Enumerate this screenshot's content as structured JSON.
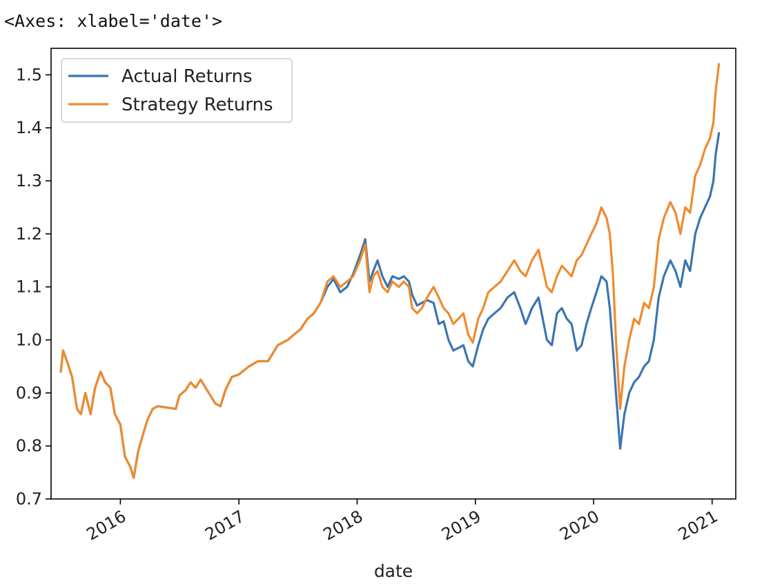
{
  "output_text": "<Axes: xlabel='date'>",
  "colors": {
    "actual": "#3a75b0",
    "strategy": "#ef8a2e",
    "axis": "#000000"
  },
  "chart_data": {
    "type": "line",
    "title": "",
    "xlabel": "date",
    "ylabel": "",
    "x_type": "date",
    "xlim": [
      "2015-06-01",
      "2021-03-15"
    ],
    "ylim": [
      0.7,
      1.55
    ],
    "y_ticks": [
      0.7,
      0.8,
      0.9,
      1.0,
      1.1,
      1.2,
      1.3,
      1.4,
      1.5
    ],
    "y_tick_labels": [
      "0.7",
      "0.8",
      "0.9",
      "1.0",
      "1.1",
      "1.2",
      "1.3",
      "1.4",
      "1.5"
    ],
    "x_ticks": [
      "2016-01-01",
      "2017-01-01",
      "2018-01-01",
      "2019-01-01",
      "2020-01-01",
      "2021-01-01"
    ],
    "x_tick_labels": [
      "2016",
      "2017",
      "2018",
      "2019",
      "2020",
      "2021"
    ],
    "x_tick_rotation": 30,
    "grid": false,
    "legend": {
      "position": "upper left",
      "entries": [
        "Actual Returns",
        "Strategy Returns"
      ]
    },
    "series": [
      {
        "name": "Actual Returns",
        "color": "#3a75b0",
        "points": [
          [
            "2015-07-01",
            0.94
          ],
          [
            "2015-07-08",
            0.98
          ],
          [
            "2015-07-20",
            0.96
          ],
          [
            "2015-08-05",
            0.93
          ],
          [
            "2015-08-20",
            0.87
          ],
          [
            "2015-09-01",
            0.86
          ],
          [
            "2015-09-15",
            0.9
          ],
          [
            "2015-10-01",
            0.86
          ],
          [
            "2015-10-15",
            0.91
          ],
          [
            "2015-11-01",
            0.94
          ],
          [
            "2015-11-15",
            0.92
          ],
          [
            "2015-12-01",
            0.91
          ],
          [
            "2015-12-15",
            0.86
          ],
          [
            "2016-01-01",
            0.84
          ],
          [
            "2016-01-15",
            0.78
          ],
          [
            "2016-02-01",
            0.76
          ],
          [
            "2016-02-11",
            0.74
          ],
          [
            "2016-02-25",
            0.79
          ],
          [
            "2016-03-10",
            0.82
          ],
          [
            "2016-03-25",
            0.85
          ],
          [
            "2016-04-10",
            0.87
          ],
          [
            "2016-04-25",
            0.875
          ],
          [
            "2016-06-20",
            0.87
          ],
          [
            "2016-07-01",
            0.895
          ],
          [
            "2016-07-20",
            0.905
          ],
          [
            "2016-08-05",
            0.92
          ],
          [
            "2016-08-20",
            0.91
          ],
          [
            "2016-09-05",
            0.925
          ],
          [
            "2016-09-20",
            0.91
          ],
          [
            "2016-10-05",
            0.895
          ],
          [
            "2016-10-20",
            0.88
          ],
          [
            "2016-11-05",
            0.875
          ],
          [
            "2016-11-20",
            0.905
          ],
          [
            "2016-12-10",
            0.93
          ],
          [
            "2017-01-01",
            0.935
          ],
          [
            "2017-02-01",
            0.95
          ],
          [
            "2017-03-01",
            0.96
          ],
          [
            "2017-04-01",
            0.96
          ],
          [
            "2017-05-01",
            0.99
          ],
          [
            "2017-06-01",
            1.0
          ],
          [
            "2017-06-20",
            1.01
          ],
          [
            "2017-07-10",
            1.02
          ],
          [
            "2017-08-01",
            1.04
          ],
          [
            "2017-08-20",
            1.05
          ],
          [
            "2017-09-10",
            1.07
          ],
          [
            "2017-10-01",
            1.1
          ],
          [
            "2017-10-20",
            1.115
          ],
          [
            "2017-11-10",
            1.09
          ],
          [
            "2017-12-01",
            1.1
          ],
          [
            "2017-12-20",
            1.125
          ],
          [
            "2018-01-10",
            1.16
          ],
          [
            "2018-01-26",
            1.19
          ],
          [
            "2018-02-08",
            1.11
          ],
          [
            "2018-02-20",
            1.13
          ],
          [
            "2018-03-05",
            1.15
          ],
          [
            "2018-03-20",
            1.12
          ],
          [
            "2018-04-05",
            1.1
          ],
          [
            "2018-04-20",
            1.12
          ],
          [
            "2018-05-10",
            1.115
          ],
          [
            "2018-05-25",
            1.12
          ],
          [
            "2018-06-10",
            1.11
          ],
          [
            "2018-06-20",
            1.085
          ],
          [
            "2018-07-05",
            1.065
          ],
          [
            "2018-07-20",
            1.07
          ],
          [
            "2018-08-05",
            1.075
          ],
          [
            "2018-08-25",
            1.07
          ],
          [
            "2018-09-10",
            1.03
          ],
          [
            "2018-09-25",
            1.035
          ],
          [
            "2018-10-10",
            1.0
          ],
          [
            "2018-10-25",
            0.98
          ],
          [
            "2018-11-10",
            0.985
          ],
          [
            "2018-11-25",
            0.99
          ],
          [
            "2018-12-10",
            0.96
          ],
          [
            "2018-12-24",
            0.95
          ],
          [
            "2019-01-10",
            0.99
          ],
          [
            "2019-01-25",
            1.02
          ],
          [
            "2019-02-10",
            1.04
          ],
          [
            "2019-03-01",
            1.05
          ],
          [
            "2019-03-20",
            1.06
          ],
          [
            "2019-04-10",
            1.08
          ],
          [
            "2019-05-01",
            1.09
          ],
          [
            "2019-05-20",
            1.06
          ],
          [
            "2019-06-05",
            1.03
          ],
          [
            "2019-06-25",
            1.06
          ],
          [
            "2019-07-15",
            1.08
          ],
          [
            "2019-08-10",
            1.0
          ],
          [
            "2019-08-25",
            0.99
          ],
          [
            "2019-09-10",
            1.05
          ],
          [
            "2019-09-25",
            1.06
          ],
          [
            "2019-10-10",
            1.04
          ],
          [
            "2019-10-25",
            1.03
          ],
          [
            "2019-11-10",
            0.98
          ],
          [
            "2019-11-25",
            0.99
          ],
          [
            "2019-12-10",
            1.03
          ],
          [
            "2019-12-25",
            1.06
          ],
          [
            "2020-01-10",
            1.09
          ],
          [
            "2020-01-25",
            1.12
          ],
          [
            "2020-02-10",
            1.11
          ],
          [
            "2020-02-20",
            1.06
          ],
          [
            "2020-03-01",
            0.98
          ],
          [
            "2020-03-10",
            0.9
          ],
          [
            "2020-03-23",
            0.795
          ],
          [
            "2020-04-05",
            0.86
          ],
          [
            "2020-04-20",
            0.9
          ],
          [
            "2020-05-05",
            0.92
          ],
          [
            "2020-05-20",
            0.93
          ],
          [
            "2020-06-05",
            0.95
          ],
          [
            "2020-06-20",
            0.96
          ],
          [
            "2020-07-05",
            1.0
          ],
          [
            "2020-07-20",
            1.08
          ],
          [
            "2020-08-05",
            1.12
          ],
          [
            "2020-08-25",
            1.15
          ],
          [
            "2020-09-10",
            1.13
          ],
          [
            "2020-09-25",
            1.1
          ],
          [
            "2020-10-10",
            1.15
          ],
          [
            "2020-10-25",
            1.13
          ],
          [
            "2020-11-10",
            1.2
          ],
          [
            "2020-11-25",
            1.23
          ],
          [
            "2020-12-10",
            1.25
          ],
          [
            "2020-12-25",
            1.27
          ],
          [
            "2021-01-05",
            1.3
          ],
          [
            "2021-01-12",
            1.35
          ],
          [
            "2021-01-22",
            1.39
          ]
        ]
      },
      {
        "name": "Strategy Returns",
        "color": "#ef8a2e",
        "points": [
          [
            "2015-07-01",
            0.94
          ],
          [
            "2015-07-08",
            0.98
          ],
          [
            "2015-07-20",
            0.96
          ],
          [
            "2015-08-05",
            0.93
          ],
          [
            "2015-08-20",
            0.87
          ],
          [
            "2015-09-01",
            0.86
          ],
          [
            "2015-09-15",
            0.9
          ],
          [
            "2015-10-01",
            0.86
          ],
          [
            "2015-10-15",
            0.91
          ],
          [
            "2015-11-01",
            0.94
          ],
          [
            "2015-11-15",
            0.92
          ],
          [
            "2015-12-01",
            0.91
          ],
          [
            "2015-12-15",
            0.86
          ],
          [
            "2016-01-01",
            0.84
          ],
          [
            "2016-01-15",
            0.78
          ],
          [
            "2016-02-01",
            0.76
          ],
          [
            "2016-02-11",
            0.74
          ],
          [
            "2016-02-25",
            0.79
          ],
          [
            "2016-03-10",
            0.82
          ],
          [
            "2016-03-25",
            0.85
          ],
          [
            "2016-04-10",
            0.87
          ],
          [
            "2016-04-25",
            0.875
          ],
          [
            "2016-06-20",
            0.87
          ],
          [
            "2016-07-01",
            0.895
          ],
          [
            "2016-07-20",
            0.905
          ],
          [
            "2016-08-05",
            0.92
          ],
          [
            "2016-08-20",
            0.91
          ],
          [
            "2016-09-05",
            0.925
          ],
          [
            "2016-09-20",
            0.91
          ],
          [
            "2016-10-05",
            0.895
          ],
          [
            "2016-10-20",
            0.88
          ],
          [
            "2016-11-05",
            0.875
          ],
          [
            "2016-11-20",
            0.905
          ],
          [
            "2016-12-10",
            0.93
          ],
          [
            "2017-01-01",
            0.935
          ],
          [
            "2017-02-01",
            0.95
          ],
          [
            "2017-03-01",
            0.96
          ],
          [
            "2017-04-01",
            0.96
          ],
          [
            "2017-05-01",
            0.99
          ],
          [
            "2017-06-01",
            1.0
          ],
          [
            "2017-06-20",
            1.01
          ],
          [
            "2017-07-10",
            1.02
          ],
          [
            "2017-08-01",
            1.04
          ],
          [
            "2017-08-20",
            1.05
          ],
          [
            "2017-09-10",
            1.07
          ],
          [
            "2017-10-01",
            1.11
          ],
          [
            "2017-10-20",
            1.12
          ],
          [
            "2017-11-10",
            1.1
          ],
          [
            "2017-12-01",
            1.11
          ],
          [
            "2017-12-20",
            1.12
          ],
          [
            "2018-01-10",
            1.15
          ],
          [
            "2018-01-26",
            1.18
          ],
          [
            "2018-02-08",
            1.09
          ],
          [
            "2018-02-20",
            1.12
          ],
          [
            "2018-03-05",
            1.13
          ],
          [
            "2018-03-20",
            1.1
          ],
          [
            "2018-04-05",
            1.09
          ],
          [
            "2018-04-20",
            1.11
          ],
          [
            "2018-05-10",
            1.1
          ],
          [
            "2018-05-25",
            1.11
          ],
          [
            "2018-06-10",
            1.1
          ],
          [
            "2018-06-20",
            1.06
          ],
          [
            "2018-07-05",
            1.05
          ],
          [
            "2018-07-20",
            1.06
          ],
          [
            "2018-08-05",
            1.08
          ],
          [
            "2018-08-25",
            1.1
          ],
          [
            "2018-09-10",
            1.08
          ],
          [
            "2018-09-25",
            1.06
          ],
          [
            "2018-10-10",
            1.05
          ],
          [
            "2018-10-25",
            1.03
          ],
          [
            "2018-11-10",
            1.04
          ],
          [
            "2018-11-25",
            1.05
          ],
          [
            "2018-12-10",
            1.01
          ],
          [
            "2018-12-24",
            0.995
          ],
          [
            "2019-01-10",
            1.04
          ],
          [
            "2019-01-25",
            1.06
          ],
          [
            "2019-02-10",
            1.09
          ],
          [
            "2019-03-01",
            1.1
          ],
          [
            "2019-03-20",
            1.11
          ],
          [
            "2019-04-10",
            1.13
          ],
          [
            "2019-05-01",
            1.15
          ],
          [
            "2019-05-20",
            1.13
          ],
          [
            "2019-06-05",
            1.12
          ],
          [
            "2019-06-25",
            1.15
          ],
          [
            "2019-07-15",
            1.17
          ],
          [
            "2019-08-10",
            1.1
          ],
          [
            "2019-08-25",
            1.09
          ],
          [
            "2019-09-10",
            1.12
          ],
          [
            "2019-09-25",
            1.14
          ],
          [
            "2019-10-10",
            1.13
          ],
          [
            "2019-10-25",
            1.12
          ],
          [
            "2019-11-10",
            1.15
          ],
          [
            "2019-11-25",
            1.16
          ],
          [
            "2019-12-10",
            1.18
          ],
          [
            "2019-12-25",
            1.2
          ],
          [
            "2020-01-10",
            1.22
          ],
          [
            "2020-01-25",
            1.25
          ],
          [
            "2020-02-10",
            1.23
          ],
          [
            "2020-02-20",
            1.2
          ],
          [
            "2020-03-01",
            1.12
          ],
          [
            "2020-03-10",
            1.0
          ],
          [
            "2020-03-23",
            0.87
          ],
          [
            "2020-04-05",
            0.95
          ],
          [
            "2020-04-20",
            1.0
          ],
          [
            "2020-05-05",
            1.04
          ],
          [
            "2020-05-20",
            1.03
          ],
          [
            "2020-06-05",
            1.07
          ],
          [
            "2020-06-20",
            1.06
          ],
          [
            "2020-07-05",
            1.1
          ],
          [
            "2020-07-20",
            1.19
          ],
          [
            "2020-08-05",
            1.23
          ],
          [
            "2020-08-25",
            1.26
          ],
          [
            "2020-09-10",
            1.24
          ],
          [
            "2020-09-25",
            1.2
          ],
          [
            "2020-10-10",
            1.25
          ],
          [
            "2020-10-25",
            1.24
          ],
          [
            "2020-11-10",
            1.31
          ],
          [
            "2020-11-25",
            1.33
          ],
          [
            "2020-12-10",
            1.36
          ],
          [
            "2020-12-25",
            1.38
          ],
          [
            "2021-01-05",
            1.41
          ],
          [
            "2021-01-12",
            1.47
          ],
          [
            "2021-01-22",
            1.52
          ]
        ]
      }
    ]
  }
}
